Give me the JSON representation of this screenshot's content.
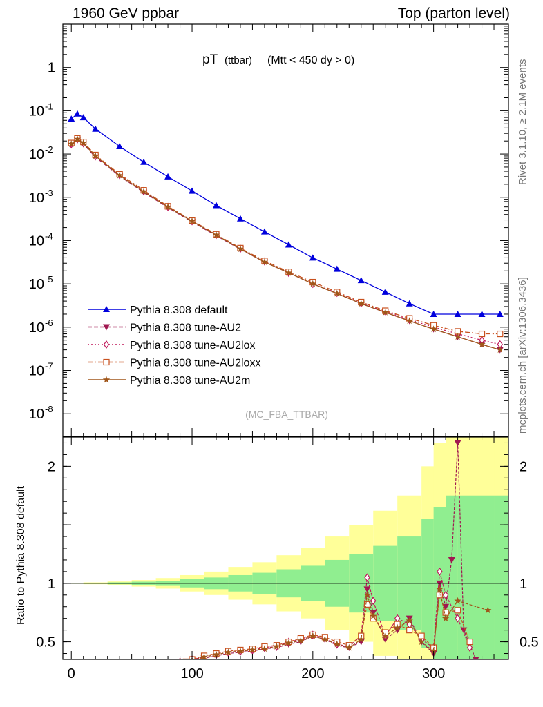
{
  "header": {
    "left": "1960 GeV ppbar",
    "right": "Top (parton level)"
  },
  "side_labels": {
    "top": "Rivet 3.1.10, ≥ 2.1M events",
    "bottom": "mcplots.cern.ch [arXiv:1306.3436]"
  },
  "colors": {
    "default": "#0000dd",
    "AU2": "#a01850",
    "AU2lox": "#c0185a",
    "AU2loxx": "#c8501e",
    "AU2m": "#a0561a",
    "band_inner": "#90ee90",
    "band_outer": "#ffff99"
  },
  "chart_data": [
    {
      "type": "line",
      "title_main": "pT",
      "title_sub": "(ttbar)",
      "title_cut": "(Mtt < 450 dy > 0)",
      "watermark": "(MC_FBA_TTBAR)",
      "xlabel": "",
      "ylabel": "",
      "yscale": "log",
      "xlim": [
        -7,
        362
      ],
      "ylim": [
        3e-09,
        10
      ],
      "grid": false,
      "legend_position": "lower-left",
      "ytick_labels": [
        "1",
        "10^-1",
        "10^-2",
        "10^-3",
        "10^-4",
        "10^-5",
        "10^-6",
        "10^-7",
        "10^-8"
      ],
      "series": [
        {
          "name": "Pythia 8.308 default",
          "style": "default",
          "marker": "triangle-up",
          "dash": "solid",
          "x": [
            0,
            5,
            10,
            20,
            40,
            60,
            80,
            100,
            120,
            140,
            160,
            180,
            200,
            220,
            240,
            260,
            280,
            300,
            320,
            340,
            355
          ],
          "y": [
            0.065,
            0.085,
            0.07,
            0.038,
            0.015,
            0.0065,
            0.003,
            0.0014,
            0.00065,
            0.00032,
            0.00016,
            8e-05,
            4e-05,
            2.2e-05,
            1.2e-05,
            6.5e-06,
            3.5e-06,
            2e-06,
            2e-06,
            2e-06,
            2e-06
          ]
        },
        {
          "name": "Pythia 8.308 tune-AU2",
          "style": "AU2",
          "marker": "triangle-down",
          "dash": "dashed",
          "x": [
            0,
            5,
            10,
            20,
            40,
            60,
            80,
            100,
            120,
            140,
            160,
            180,
            200,
            220,
            240,
            260,
            280,
            300,
            320,
            340,
            355
          ],
          "y": [
            0.016,
            0.021,
            0.017,
            0.0085,
            0.0031,
            0.0013,
            0.00058,
            0.00027,
            0.00013,
            6.3e-05,
            3.2e-05,
            1.8e-05,
            1e-05,
            6e-06,
            3.5e-06,
            2.2e-06,
            1.4e-06,
            9e-07,
            6e-07,
            4e-07,
            3e-07
          ]
        },
        {
          "name": "Pythia 8.308 tune-AU2lox",
          "style": "AU2lox",
          "marker": "diamond-open",
          "dash": "dotted",
          "x": [
            0,
            5,
            10,
            20,
            40,
            60,
            80,
            100,
            120,
            140,
            160,
            180,
            200,
            220,
            240,
            260,
            280,
            300,
            320,
            340,
            355
          ],
          "y": [
            0.017,
            0.022,
            0.018,
            0.009,
            0.0033,
            0.0014,
            0.0006,
            0.00028,
            0.000135,
            6.5e-05,
            3.3e-05,
            1.8e-05,
            1e-05,
            6.2e-06,
            3.6e-06,
            2.3e-06,
            1.5e-06,
            1e-06,
            7e-07,
            5e-07,
            4e-07
          ]
        },
        {
          "name": "Pythia 8.308 tune-AU2loxx",
          "style": "AU2loxx",
          "marker": "square-open",
          "dash": "dashdot",
          "x": [
            0,
            5,
            10,
            20,
            40,
            60,
            80,
            100,
            120,
            140,
            160,
            180,
            200,
            220,
            240,
            260,
            280,
            300,
            320,
            340,
            355
          ],
          "y": [
            0.018,
            0.023,
            0.019,
            0.0095,
            0.0034,
            0.00145,
            0.00062,
            0.00029,
            0.00014,
            6.7e-05,
            3.4e-05,
            1.9e-05,
            1.1e-05,
            6.5e-06,
            3.8e-06,
            2.4e-06,
            1.6e-06,
            1.1e-06,
            8e-07,
            7e-07,
            7e-07
          ]
        },
        {
          "name": "Pythia 8.308 tune-AU2m",
          "style": "AU2m",
          "marker": "star",
          "dash": "solid",
          "x": [
            0,
            5,
            10,
            20,
            40,
            60,
            80,
            100,
            120,
            140,
            160,
            180,
            200,
            220,
            240,
            260,
            280,
            300,
            320,
            340,
            355
          ],
          "y": [
            0.017,
            0.022,
            0.018,
            0.009,
            0.0032,
            0.00135,
            0.0006,
            0.00028,
            0.000135,
            6.4e-05,
            3.2e-05,
            1.8e-05,
            1e-05,
            6e-06,
            3.5e-06,
            2.2e-06,
            1.4e-06,
            9e-07,
            6e-07,
            4e-07,
            3e-07
          ]
        }
      ]
    },
    {
      "type": "line",
      "xlabel": "",
      "ylabel": "Ratio to Pythia 8.308 default",
      "xlim": [
        -7,
        362
      ],
      "ylim": [
        0.35,
        2.25
      ],
      "grid": false,
      "reference_line": 1,
      "xtick_labels": [
        "0",
        "100",
        "200",
        "300"
      ],
      "ytick_labels": [
        "0.5",
        "1",
        "2"
      ],
      "band": {
        "x": [
          0,
          20,
          40,
          60,
          80,
          100,
          120,
          140,
          160,
          180,
          200,
          220,
          240,
          260,
          280,
          300,
          310,
          320,
          330,
          340,
          350,
          360
        ],
        "inner": [
          0.002,
          0.004,
          0.008,
          0.014,
          0.022,
          0.035,
          0.05,
          0.07,
          0.09,
          0.12,
          0.15,
          0.2,
          0.25,
          0.32,
          0.4,
          0.55,
          0.65,
          0.75,
          0.75,
          0.75,
          0.75,
          0.75
        ],
        "outer": [
          0.004,
          0.008,
          0.016,
          0.028,
          0.045,
          0.07,
          0.1,
          0.14,
          0.18,
          0.24,
          0.3,
          0.4,
          0.5,
          0.62,
          0.75,
          1.0,
          1.2,
          1.3,
          1.3,
          1.3,
          1.3,
          1.3
        ]
      },
      "series": [
        {
          "name": "Pythia 8.308 tune-AU2",
          "style": "AU2",
          "x": [
            85,
            100,
            110,
            120,
            130,
            140,
            150,
            160,
            170,
            180,
            190,
            200,
            210,
            220,
            230,
            240,
            245,
            250,
            260,
            270,
            280,
            290,
            300,
            305,
            310,
            315,
            320,
            325,
            335
          ],
          "y": [
            0.33,
            0.34,
            0.36,
            0.38,
            0.4,
            0.41,
            0.42,
            0.44,
            0.45,
            0.48,
            0.5,
            0.55,
            0.52,
            0.47,
            0.45,
            0.5,
            0.95,
            0.75,
            0.52,
            0.6,
            0.7,
            0.5,
            0.4,
            1.0,
            0.8,
            1.2,
            2.2,
            0.6,
            0.35
          ]
        },
        {
          "name": "Pythia 8.308 tune-AU2lox",
          "style": "AU2lox",
          "x": [
            90,
            100,
            110,
            120,
            130,
            140,
            150,
            160,
            170,
            180,
            190,
            200,
            210,
            220,
            230,
            240,
            245,
            250,
            260,
            270,
            280,
            290,
            300,
            305,
            310,
            320,
            330
          ],
          "y": [
            0.33,
            0.35,
            0.37,
            0.39,
            0.41,
            0.42,
            0.43,
            0.45,
            0.46,
            0.5,
            0.52,
            0.56,
            0.53,
            0.48,
            0.46,
            0.55,
            1.05,
            0.85,
            0.55,
            0.7,
            0.65,
            0.52,
            0.45,
            1.1,
            0.9,
            0.7,
            0.45
          ]
        },
        {
          "name": "Pythia 8.308 tune-AU2loxx",
          "style": "AU2loxx",
          "x": [
            95,
            100,
            110,
            120,
            130,
            140,
            150,
            160,
            170,
            180,
            190,
            200,
            210,
            220,
            230,
            240,
            245,
            250,
            260,
            270,
            280,
            290,
            300,
            305,
            310,
            320,
            330
          ],
          "y": [
            0.33,
            0.35,
            0.38,
            0.4,
            0.42,
            0.43,
            0.44,
            0.46,
            0.47,
            0.5,
            0.53,
            0.56,
            0.54,
            0.5,
            0.47,
            0.55,
            0.82,
            0.7,
            0.58,
            0.65,
            0.6,
            0.55,
            0.45,
            0.9,
            0.75,
            0.77,
            0.5
          ]
        },
        {
          "name": "Pythia 8.308 tune-AU2m",
          "style": "AU2m",
          "x": [
            90,
            100,
            110,
            120,
            130,
            140,
            150,
            160,
            170,
            180,
            190,
            200,
            210,
            220,
            230,
            240,
            245,
            250,
            260,
            270,
            280,
            290,
            300,
            305,
            310,
            320,
            345
          ],
          "y": [
            0.33,
            0.34,
            0.37,
            0.39,
            0.41,
            0.42,
            0.43,
            0.44,
            0.46,
            0.49,
            0.51,
            0.55,
            0.52,
            0.48,
            0.45,
            0.52,
            0.9,
            0.72,
            0.55,
            0.62,
            0.68,
            0.5,
            0.42,
            0.95,
            0.7,
            0.85,
            0.77
          ]
        }
      ]
    }
  ]
}
